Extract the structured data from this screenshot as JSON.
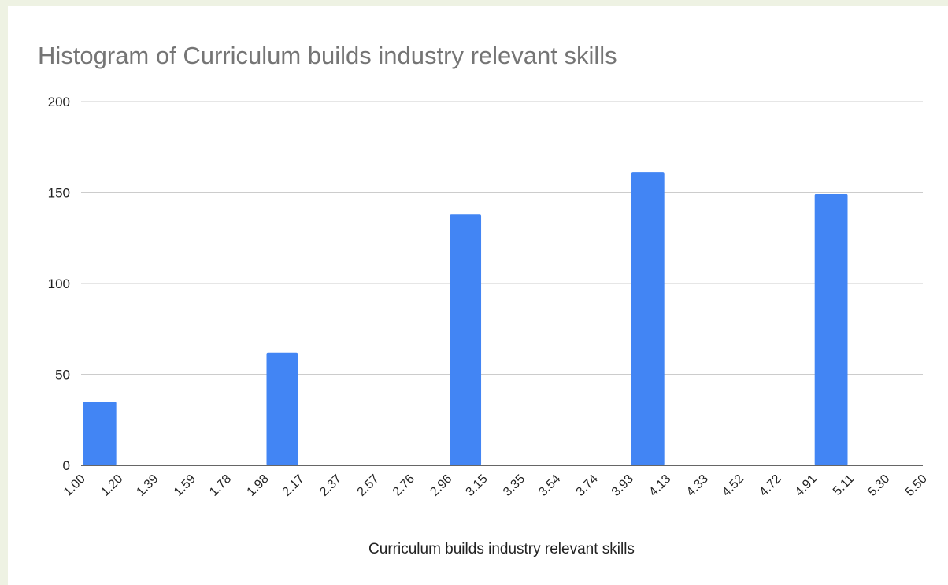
{
  "chart_data": {
    "type": "histogram",
    "title": "Histogram of Curriculum builds industry relevant skills",
    "x_label": "Curriculum builds industry relevant skills",
    "bins": [
      1,
      1.2,
      1.39,
      1.59,
      1.78,
      1.98,
      2.17,
      2.37,
      2.57,
      2.76,
      2.96,
      3.15,
      3.35,
      3.54,
      3.74,
      3.93,
      4.13,
      4.33,
      4.52,
      4.72,
      4.91,
      5.11,
      5.3,
      5.5
    ],
    "counts": [
      35,
      0,
      0,
      0,
      0,
      62,
      0,
      0,
      0,
      0,
      138,
      0,
      0,
      0,
      0,
      161,
      0,
      0,
      0,
      0,
      149,
      0,
      0
    ],
    "color": "#4285f4",
    "xlim": [
      1,
      5.5
    ],
    "xticks": [
      {
        "value": 1,
        "label": "1.00"
      },
      {
        "value": 1.2,
        "label": "1.20"
      },
      1.39,
      1.59,
      1.78,
      1.98,
      2.17,
      2.37,
      2.57,
      2.76,
      2.96,
      3.15,
      3.35,
      3.54,
      3.74,
      3.93,
      4.13,
      4.33,
      4.52,
      4.72,
      4.91,
      5.11,
      {
        "value": 5.3,
        "label": "5.30"
      },
      {
        "value": 5.5,
        "label": "5.50"
      }
    ],
    "ylim": [
      0,
      200
    ],
    "yticks": [
      0,
      50,
      100,
      150,
      200
    ],
    "grid": true
  }
}
